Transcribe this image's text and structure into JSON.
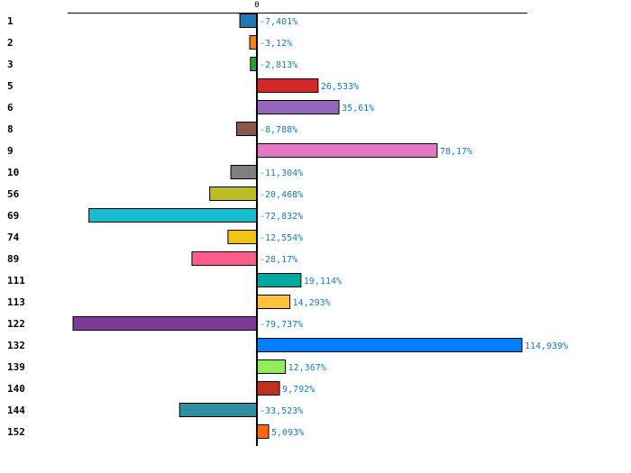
{
  "chart_data": {
    "type": "bar",
    "orientation": "horizontal",
    "title": "",
    "xlabel": "",
    "ylabel": "",
    "zero_label": "0",
    "xlim": [
      -82,
      118
    ],
    "grid": false,
    "categories": [
      "1",
      "2",
      "3",
      "5",
      "6",
      "8",
      "9",
      "10",
      "56",
      "69",
      "74",
      "89",
      "111",
      "113",
      "122",
      "132",
      "139",
      "140",
      "144",
      "152"
    ],
    "values": [
      -7.401,
      -3.12,
      -2.813,
      26.533,
      35.61,
      -8.788,
      78.17,
      -11.304,
      -20.468,
      -72.832,
      -12.554,
      -28.17,
      19.114,
      14.293,
      -79.737,
      114.939,
      12.367,
      9.792,
      -33.523,
      5.093
    ],
    "value_labels": [
      "-7,401%",
      "-3,12%",
      "-2,813%",
      "26,533%",
      "35,61%",
      "-8,788%",
      "78,17%",
      "-11,304%",
      "-20,468%",
      "-72,832%",
      "-12,554%",
      "-28,17%",
      "19,114%",
      "14,293%",
      "-79,737%",
      "114,939%",
      "12,367%",
      "9,792%",
      "-33,523%",
      "5,093%"
    ],
    "colors": [
      "#1f77b4",
      "#ff7f0e",
      "#2ca02c",
      "#d62728",
      "#9467bd",
      "#8c564b",
      "#e377c2",
      "#7f7f7f",
      "#bcbd22",
      "#17becf",
      "#f1c40f",
      "#ff5c8d",
      "#00a99d",
      "#ffc13b",
      "#7b3b96",
      "#0080ff",
      "#90ee5a",
      "#c0301c",
      "#2e8fa0",
      "#ff6a00"
    ],
    "label_color": "#1f77b4"
  }
}
